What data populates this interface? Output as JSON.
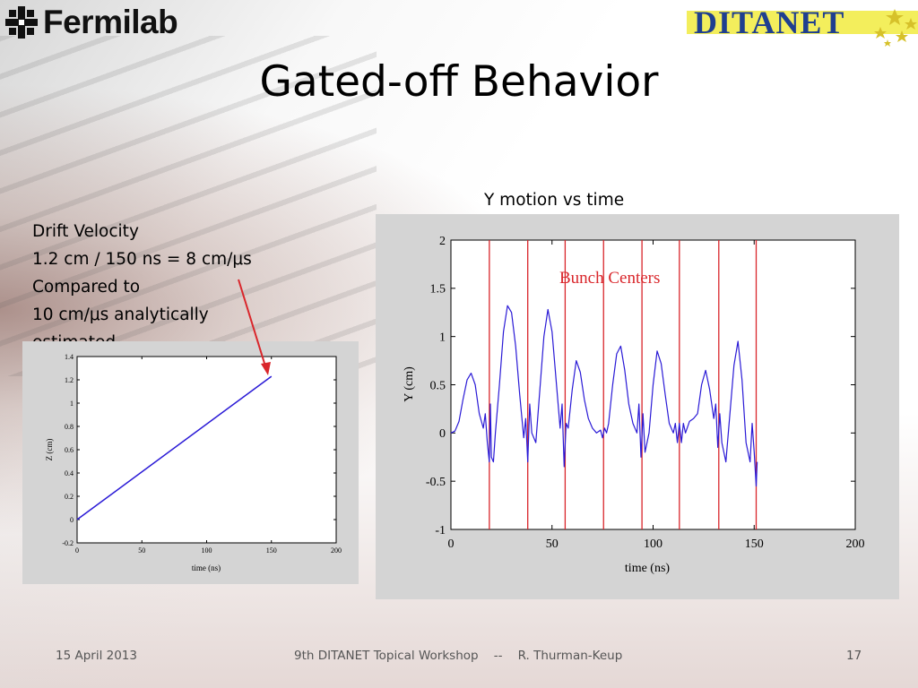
{
  "header": {
    "left_logo_text": "Fermilab",
    "right_logo_text": "DITANET",
    "title": "Gated-off Behavior"
  },
  "notes": {
    "lines": [
      "Drift Velocity",
      "1.2 cm / 150 ns = 8 cm/μs",
      "Compared to",
      "10 cm/μs analytically",
      "estimated"
    ]
  },
  "right_chart_title": "Y motion vs time",
  "footer": {
    "date": "15 April 2013",
    "center": "9th DITANET Topical Workshop    --    R. Thurman-Keup",
    "page": "17"
  },
  "colors": {
    "trace": "#2a1ad6",
    "bunch_lines": "#d9262b",
    "annotation": "#d9262b",
    "panel_bg": "#d4d4d4"
  },
  "chart_data": [
    {
      "type": "line",
      "title": "",
      "xlabel": "time  (ns)",
      "ylabel": "Z (cm)",
      "xlim": [
        0,
        200
      ],
      "ylim": [
        -0.2,
        1.4
      ],
      "xticks": [
        "0",
        "50",
        "100",
        "150",
        "200"
      ],
      "yticks": [
        "-0.2",
        "0",
        "0.2",
        "0.4",
        "0.6",
        "0.8",
        "1",
        "1.2",
        "1.4"
      ],
      "grid": false,
      "series": [
        {
          "x": [
            0,
            150
          ],
          "y": [
            0.0,
            1.23
          ]
        }
      ]
    },
    {
      "type": "line",
      "title": "",
      "xlabel": "time  (ns)",
      "ylabel": "Y (cm)",
      "xlim": [
        0,
        200
      ],
      "ylim": [
        -1,
        2
      ],
      "xticks": [
        "0",
        "50",
        "100",
        "150",
        "200"
      ],
      "yticks": [
        "-1",
        "-0.5",
        "0",
        "0.5",
        "1",
        "1.5",
        "2"
      ],
      "grid": false,
      "annotation": "Bunch Centers",
      "vertical_lines_x": [
        19,
        38,
        56.5,
        75.5,
        94.5,
        113,
        132.5,
        151
      ],
      "series": [
        {
          "x": [
            0,
            2,
            4,
            6,
            8,
            10,
            12,
            14,
            16,
            17,
            18,
            19,
            19.5,
            20,
            21,
            22,
            24,
            26,
            28,
            30,
            32,
            34,
            36,
            37,
            38,
            39,
            40,
            42,
            44,
            46,
            48,
            50,
            52,
            54,
            55,
            56,
            57,
            58,
            60,
            62,
            64,
            66,
            68,
            70,
            72,
            74,
            75,
            76,
            77,
            78,
            80,
            82,
            84,
            86,
            88,
            90,
            92,
            93,
            94,
            95,
            96,
            98,
            100,
            102,
            104,
            106,
            108,
            110,
            111,
            112,
            113,
            114,
            115,
            116,
            118,
            120,
            122,
            124,
            126,
            128,
            130,
            131,
            132,
            133,
            134,
            136,
            138,
            140,
            142,
            144,
            146,
            148,
            149,
            150,
            151,
            151.5
          ],
          "y": [
            0.0,
            0.02,
            0.12,
            0.35,
            0.55,
            0.62,
            0.5,
            0.2,
            0.05,
            0.2,
            -0.1,
            -0.3,
            0.3,
            -0.25,
            -0.3,
            0.0,
            0.5,
            1.05,
            1.32,
            1.25,
            0.9,
            0.4,
            -0.05,
            0.15,
            -0.3,
            0.3,
            0.0,
            -0.1,
            0.45,
            1.0,
            1.28,
            1.05,
            0.55,
            0.05,
            0.3,
            -0.35,
            0.1,
            0.05,
            0.45,
            0.75,
            0.63,
            0.35,
            0.15,
            0.05,
            0.0,
            0.03,
            -0.05,
            0.05,
            0.0,
            0.1,
            0.5,
            0.82,
            0.9,
            0.65,
            0.3,
            0.1,
            0.0,
            0.3,
            -0.25,
            0.2,
            -0.2,
            0.0,
            0.5,
            0.85,
            0.72,
            0.4,
            0.1,
            0.0,
            0.1,
            -0.1,
            0.1,
            -0.1,
            0.1,
            0.0,
            0.12,
            0.15,
            0.2,
            0.5,
            0.65,
            0.45,
            0.15,
            0.3,
            -0.15,
            0.2,
            -0.1,
            -0.3,
            0.2,
            0.7,
            0.95,
            0.55,
            -0.1,
            -0.3,
            0.1,
            -0.2,
            -0.55,
            -0.3
          ]
        }
      ]
    }
  ]
}
